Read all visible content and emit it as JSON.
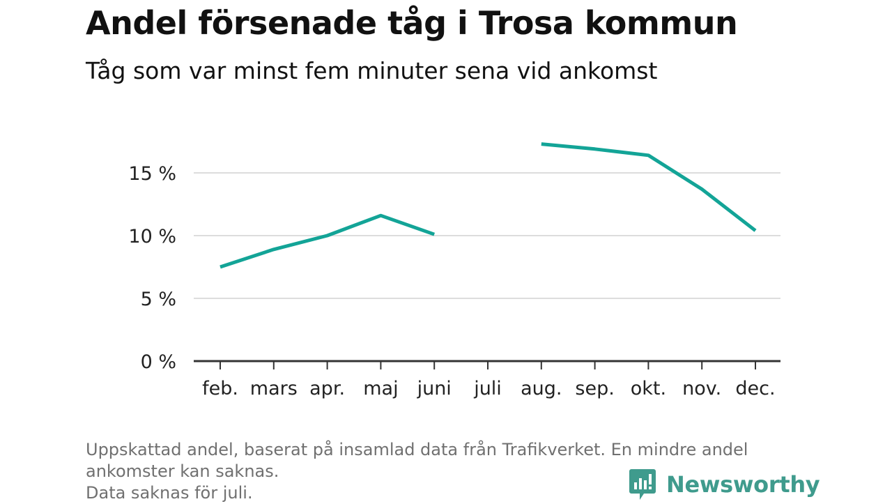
{
  "header": {
    "title": "Andel försenade tåg i Trosa kommun",
    "subtitle": "Tåg som var minst fem minuter sena vid ankomst"
  },
  "chart_data": {
    "type": "line",
    "title": "Andel försenade tåg i Trosa kommun",
    "subtitle": "Tåg som var minst fem minuter sena vid ankomst",
    "xlabel": "",
    "ylabel": "",
    "categories": [
      "feb.",
      "mars",
      "apr.",
      "maj",
      "juni",
      "juli",
      "aug.",
      "sep.",
      "okt.",
      "nov.",
      "dec."
    ],
    "series": [
      {
        "values": [
          7.5,
          8.9,
          10.0,
          11.6,
          10.1,
          null,
          17.3,
          16.9,
          16.4,
          13.7,
          10.4
        ]
      }
    ],
    "yticks": [
      0,
      5,
      10,
      15
    ],
    "ytick_labels": [
      "0 %",
      "5 %",
      "10 %",
      "15 %"
    ],
    "ylim": [
      0,
      18
    ],
    "grid": true,
    "line_color": "#13a497"
  },
  "footer": {
    "note_lines": [
      "Uppskattad andel, baserat på insamlad data från Trafikverket. En mindre andel",
      "ankomster kan saknas.",
      "Data saknas för juli."
    ],
    "brand": "Newsworthy",
    "brand_color": "#3f9b8d"
  }
}
